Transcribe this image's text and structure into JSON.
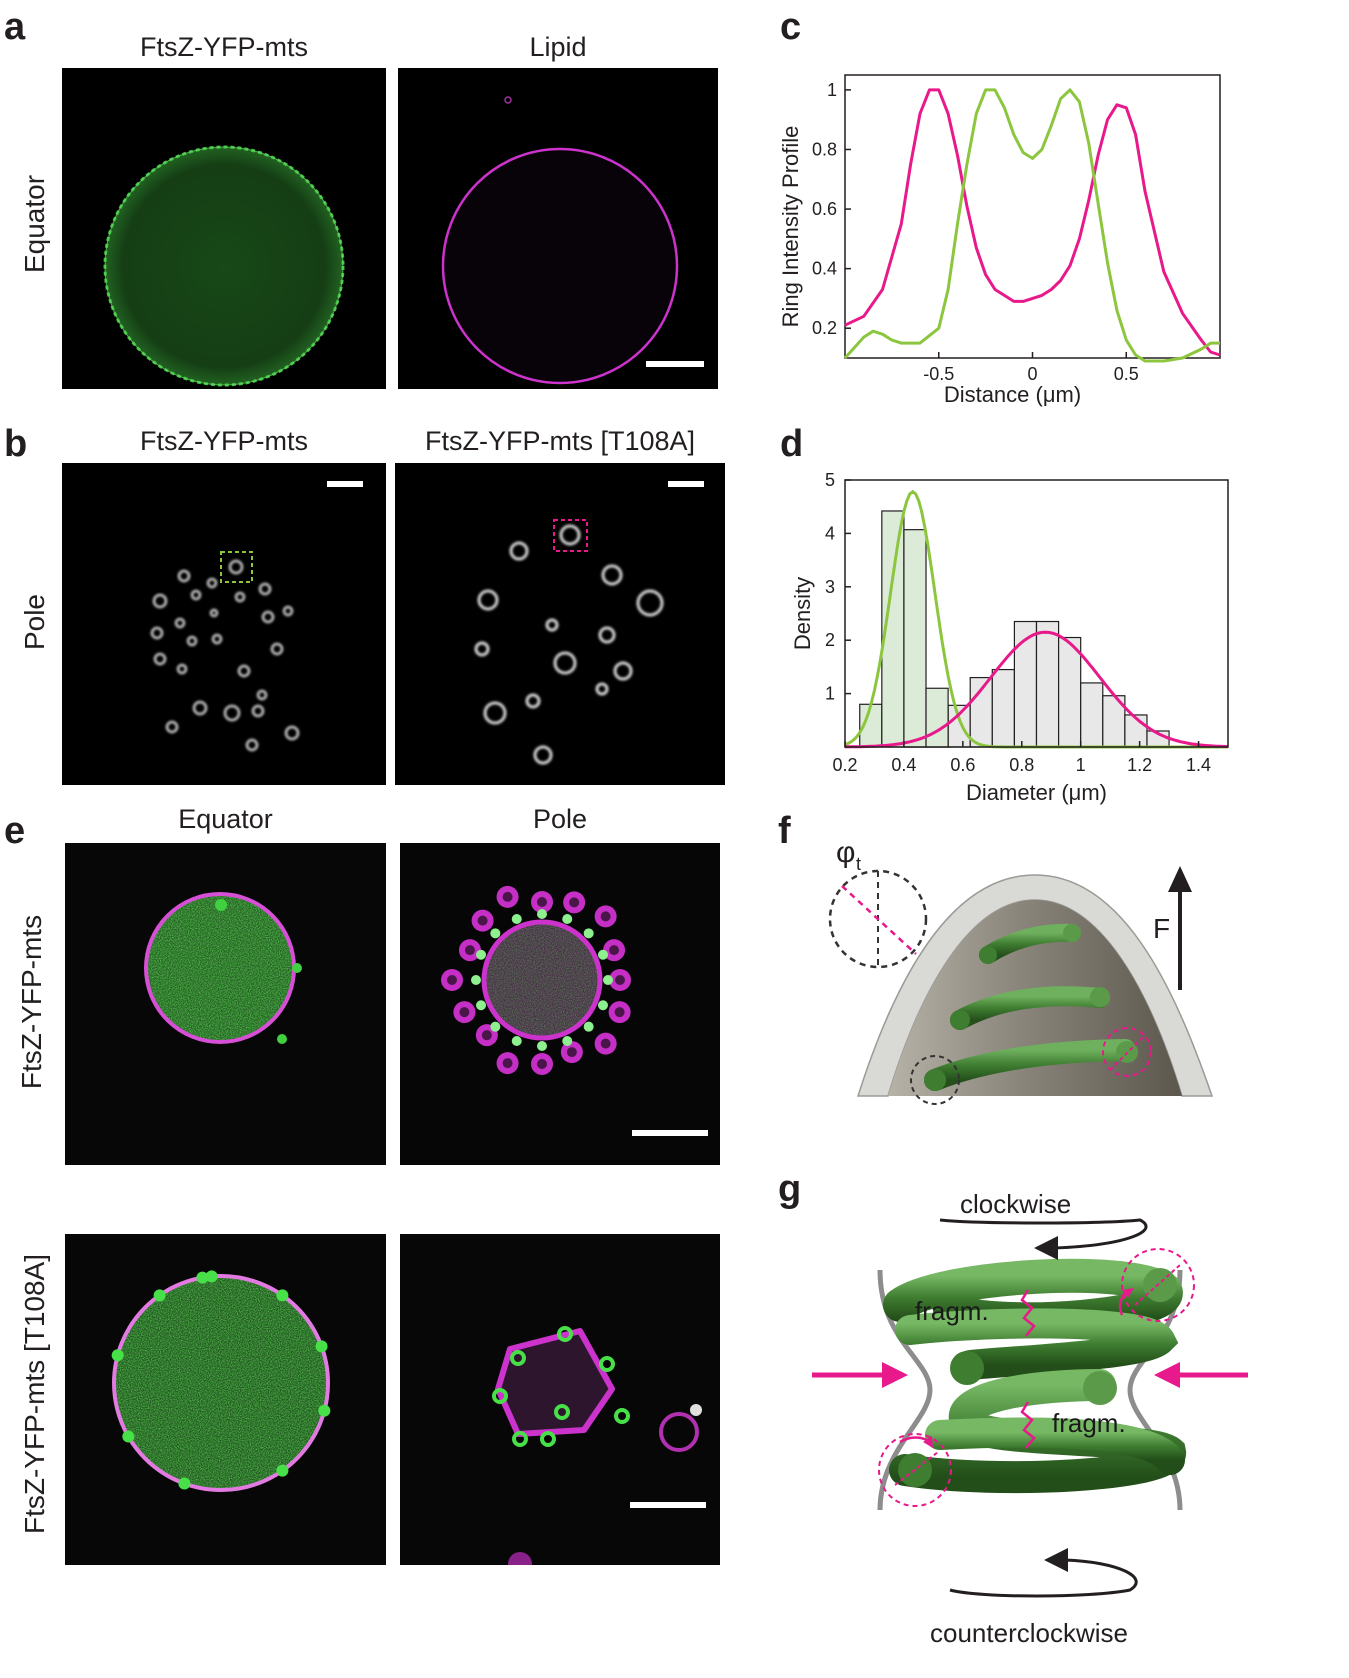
{
  "panel_letters": {
    "a": "a",
    "b": "b",
    "c": "c",
    "d": "d",
    "e": "e",
    "f": "f",
    "g": "g"
  },
  "panel_a": {
    "col1_title": "FtsZ-YFP-mts",
    "col2_title": "Lipid",
    "row_label": "Equator",
    "colors": {
      "green": "#3fbf3f",
      "magenta": "#cc33cc"
    }
  },
  "panel_b": {
    "col1_title": "FtsZ-YFP-mts",
    "col2_title": "FtsZ-YFP-mts [T108A]",
    "row_label": "Pole",
    "box_colors": {
      "left": "#8cc63f",
      "right": "#e8198b"
    }
  },
  "panel_e": {
    "col1_title": "Equator",
    "col2_title": "Pole",
    "row1_label": "FtsZ-YFP-mts",
    "row2_label": "FtsZ-YFP-mts [T108A]"
  },
  "panel_f": {
    "phi_symbol": "φ",
    "phi_subscript": "t",
    "force_label": "F",
    "colors": {
      "spring": "#4e8a3e",
      "membrane": "#d9d9d6",
      "highlight": "#e8198b"
    }
  },
  "panel_g": {
    "top_label": "clockwise",
    "bottom_label": "counterclockwise",
    "fragment_label_1": "fragm.",
    "fragment_label_2": "fragm.",
    "arrow_color": "#e8198b"
  },
  "chart_data": [
    {
      "id": "c",
      "type": "line",
      "xlabel": "Distance (μm)",
      "ylabel": "Ring Intensity Profile",
      "xlim": [
        -1.0,
        1.0
      ],
      "ylim": [
        0.1,
        1.05
      ],
      "xticks": [
        -0.5,
        0,
        0.5
      ],
      "xtick_labels": [
        "-0.5",
        "0",
        "0.5"
      ],
      "yticks": [
        0.2,
        0.4,
        0.6,
        0.8,
        1
      ],
      "ytick_labels": [
        "0.2",
        "0.4",
        "0.6",
        "0.8",
        "1"
      ],
      "grid": false,
      "series": [
        {
          "color": "#e8198b",
          "x": [
            -1.0,
            -0.9,
            -0.8,
            -0.7,
            -0.65,
            -0.6,
            -0.55,
            -0.5,
            -0.45,
            -0.4,
            -0.35,
            -0.3,
            -0.25,
            -0.2,
            -0.15,
            -0.1,
            -0.05,
            0.0,
            0.05,
            0.1,
            0.15,
            0.2,
            0.25,
            0.3,
            0.35,
            0.4,
            0.45,
            0.5,
            0.55,
            0.6,
            0.7,
            0.8,
            0.9,
            0.95,
            1.0
          ],
          "y": [
            0.21,
            0.24,
            0.33,
            0.55,
            0.75,
            0.92,
            1.0,
            1.0,
            0.92,
            0.78,
            0.61,
            0.47,
            0.38,
            0.33,
            0.31,
            0.29,
            0.29,
            0.3,
            0.31,
            0.33,
            0.36,
            0.41,
            0.5,
            0.63,
            0.78,
            0.9,
            0.95,
            0.94,
            0.85,
            0.66,
            0.39,
            0.25,
            0.16,
            0.12,
            0.11
          ]
        },
        {
          "color": "#8cc63f",
          "x": [
            -1.0,
            -0.9,
            -0.85,
            -0.8,
            -0.75,
            -0.7,
            -0.6,
            -0.5,
            -0.45,
            -0.4,
            -0.35,
            -0.3,
            -0.25,
            -0.2,
            -0.15,
            -0.1,
            -0.05,
            0.0,
            0.05,
            0.1,
            0.15,
            0.2,
            0.25,
            0.3,
            0.35,
            0.4,
            0.45,
            0.5,
            0.55,
            0.6,
            0.7,
            0.8,
            0.9,
            0.95,
            1.0
          ],
          "y": [
            0.1,
            0.17,
            0.19,
            0.18,
            0.16,
            0.15,
            0.15,
            0.2,
            0.33,
            0.55,
            0.75,
            0.92,
            1.0,
            1.0,
            0.94,
            0.85,
            0.79,
            0.77,
            0.8,
            0.88,
            0.97,
            1.0,
            0.96,
            0.82,
            0.62,
            0.42,
            0.26,
            0.16,
            0.11,
            0.09,
            0.09,
            0.1,
            0.13,
            0.15,
            0.15
          ]
        }
      ]
    },
    {
      "id": "d",
      "type": "bar",
      "xlabel": "Diameter (μm)",
      "ylabel": "Density",
      "xlim": [
        0.2,
        1.5
      ],
      "ylim": [
        0,
        5
      ],
      "xticks": [
        0.2,
        0.4,
        0.6,
        0.8,
        1,
        1.2,
        1.4
      ],
      "xtick_labels": [
        "0.2",
        "0.4",
        "0.6",
        "0.8",
        "1",
        "1.2",
        "1.4"
      ],
      "yticks": [
        1,
        2,
        3,
        4,
        5
      ],
      "ytick_labels": [
        "1",
        "2",
        "3",
        "4",
        "5"
      ],
      "grid": false,
      "histograms": [
        {
          "name": "FtsZ-YFP-mts",
          "fill": "#dcebd8",
          "edges": [
            0.25,
            0.325,
            0.4,
            0.475,
            0.55
          ],
          "values": [
            0.8,
            4.42,
            4.07,
            1.1
          ]
        },
        {
          "name": "FtsZ-YFP-mts [T108A]",
          "fill": "#e8e8e8",
          "edges": [
            0.4,
            0.475,
            0.55,
            0.625,
            0.7,
            0.775,
            0.85,
            0.925,
            1.0,
            1.075,
            1.15,
            1.225,
            1.3
          ],
          "values": [
            0.23,
            0.3,
            0.78,
            1.3,
            1.45,
            2.35,
            2.35,
            2.05,
            1.2,
            0.96,
            0.6,
            0.3
          ]
        }
      ],
      "fits": [
        {
          "color": "#8cc63f",
          "type": "gaussian",
          "mean": 0.43,
          "sd": 0.075,
          "peak": 4.78
        },
        {
          "color": "#e8198b",
          "type": "gaussian",
          "mean": 0.88,
          "sd": 0.185,
          "peak": 2.15
        }
      ]
    }
  ]
}
